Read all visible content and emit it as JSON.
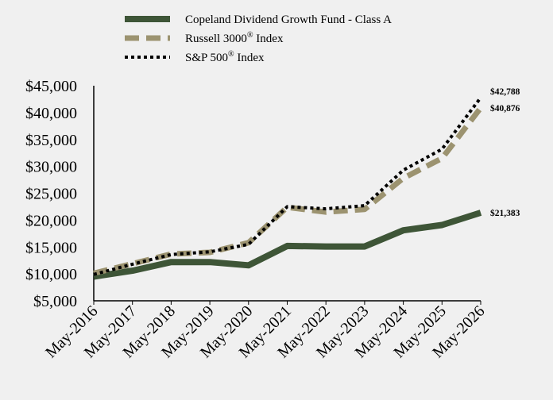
{
  "chart_data": {
    "type": "line",
    "categories": [
      "May-2016",
      "May-2017",
      "May-2018",
      "May-2019",
      "May-2020",
      "May-2021",
      "May-2022",
      "May-2023",
      "May-2024",
      "May-2025",
      "May-2026"
    ],
    "ylim": [
      5000,
      45000
    ],
    "y_ticks": [
      5000,
      10000,
      15000,
      20000,
      25000,
      30000,
      35000,
      40000,
      45000
    ],
    "y_tick_labels": [
      "$5,000",
      "$10,000",
      "$15,000",
      "$20,000",
      "$25,000",
      "$30,000",
      "$35,000",
      "$40,000",
      "$45,000"
    ],
    "grid": false,
    "legend_position": "top-center",
    "series": [
      {
        "name": "Copeland Dividend Growth Fund - Class A",
        "name_sup": "",
        "name_suffix": "",
        "color": "#3e5537",
        "style": "solid",
        "values": [
          9500,
          10600,
          12200,
          12200,
          11600,
          15200,
          15100,
          15100,
          18100,
          19100,
          21383
        ],
        "end_label": "$21,383"
      },
      {
        "name": "Russell 3000",
        "name_sup": "®",
        "name_suffix": " Index",
        "color": "#9c9370",
        "style": "dashed",
        "values": [
          10100,
          11900,
          13700,
          14000,
          15800,
          22400,
          21500,
          22000,
          27800,
          31500,
          40876
        ],
        "end_label": "$40,876"
      },
      {
        "name": "S&P 500",
        "name_sup": "®",
        "name_suffix": " Index",
        "color": "#000000",
        "style": "dotted",
        "values": [
          9900,
          11800,
          13600,
          14100,
          15500,
          22500,
          22100,
          22700,
          29300,
          33200,
          42788
        ],
        "end_label": "$42,788"
      }
    ]
  }
}
